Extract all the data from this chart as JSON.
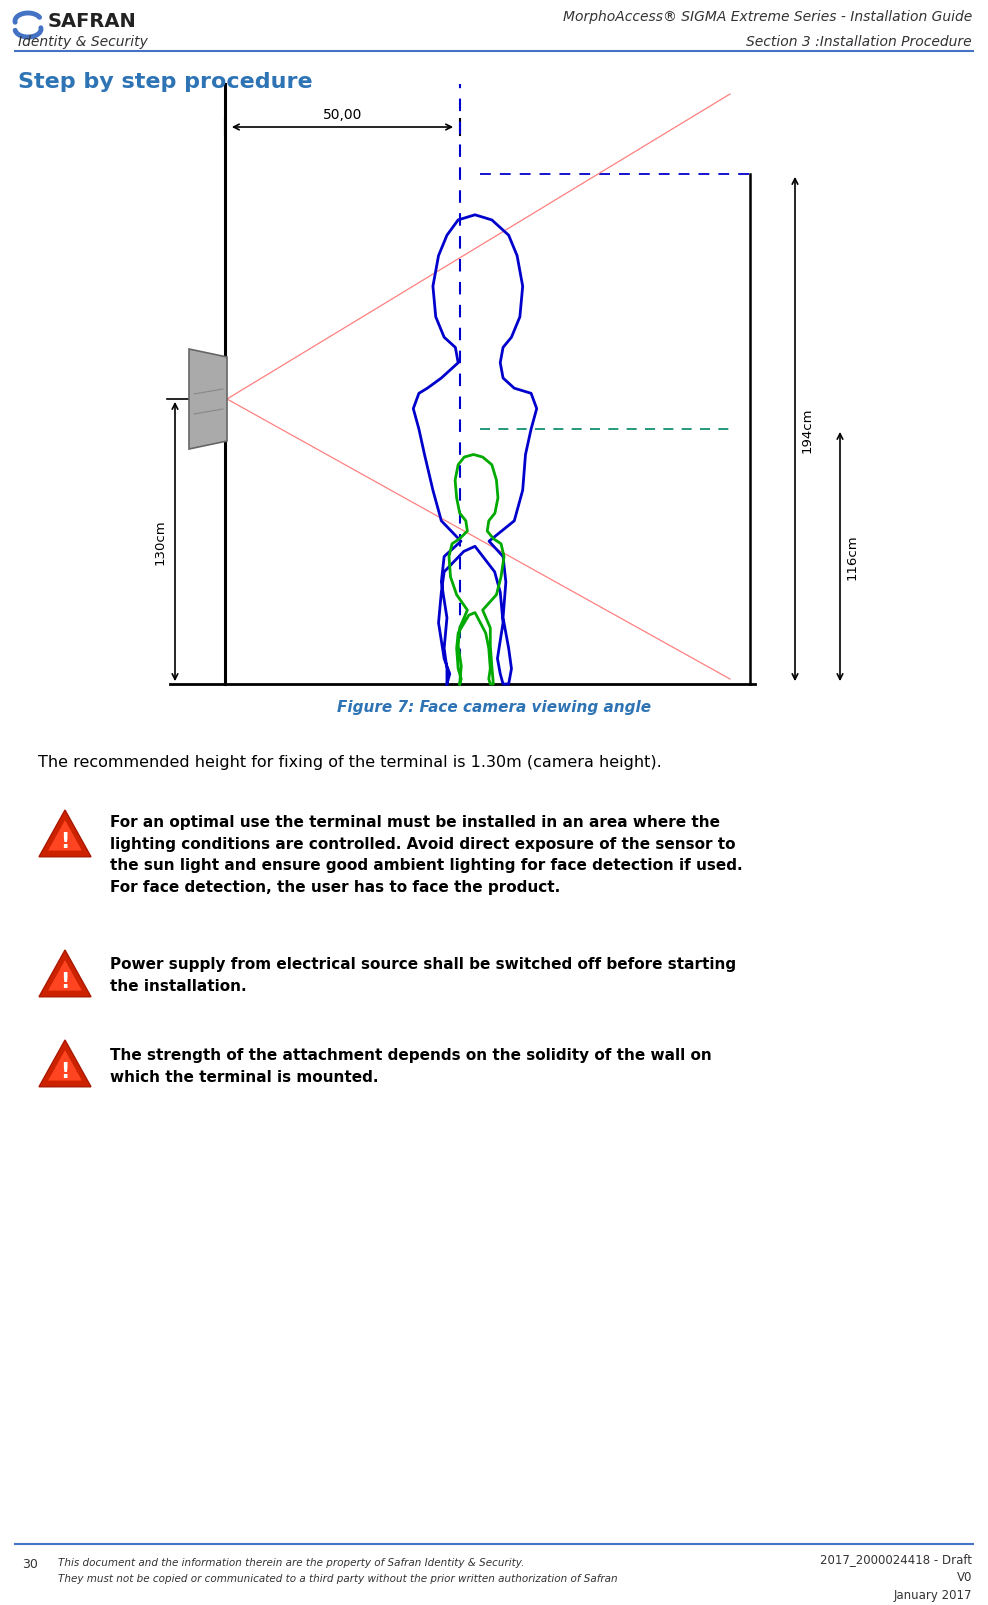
{
  "title_header": "MorphoAccess® SIGMA Extreme Series - Installation Guide",
  "subtitle_header": "Section 3 :Installation Procedure",
  "left_header": "Identity & Security",
  "section_title": "Step by step procedure",
  "figure_caption": "Figure 7: Face camera viewing angle",
  "dim_50": "50,00",
  "dim_130": "130cm",
  "dim_194": "194cm",
  "dim_116": "116cm",
  "text_para1": "The recommended height for fixing of the terminal is 1.30m (camera height).",
  "warn1": "For an optimal use the terminal must be installed in an area where the\nlighting conditions are controlled. Avoid direct exposure of the sensor to\nthe sun light and ensure good ambient lighting for face detection if used.\nFor face detection, the user has to face the product.",
  "warn2": "Power supply from electrical source shall be switched off before starting\nthe installation.",
  "warn3": "The strength of the attachment depends on the solidity of the wall on\nwhich the terminal is mounted.",
  "footer_left_num": "30",
  "footer_left_text1": "This document and the information therein are the property of Safran Identity & Security.",
  "footer_left_text2": "They must not be copied or communicated to a third party without the prior written authorization of Safran",
  "footer_right": "2017_2000024418 - Draft\nV0\nJanuary 2017",
  "header_line_color": "#4472c4",
  "section_title_color": "#2e74b5",
  "figure_caption_color": "#2e74b5",
  "body_text_color": "#000000",
  "blue_line_color": "#0000cc",
  "green_line_color": "#00aa00",
  "red_line_color": "#ff8080",
  "warn_icon_color": "#cc2200",
  "warn_icon_top": "#ff4400",
  "bg_color": "#ffffff"
}
